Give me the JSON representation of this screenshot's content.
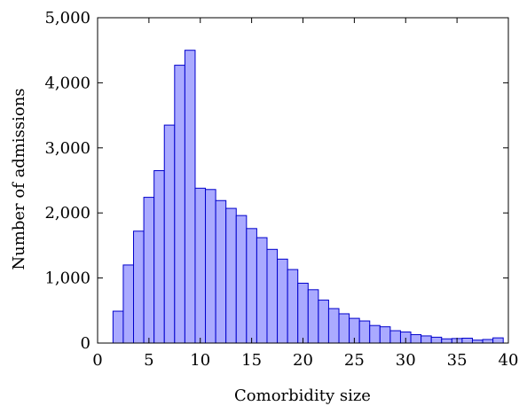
{
  "chart_data": {
    "type": "bar",
    "xlabel": "Comorbidity size",
    "ylabel": "Number of admissions",
    "xlim": [
      0,
      40
    ],
    "ylim": [
      0,
      5000
    ],
    "grid": false,
    "bar_color": "#aaaaff",
    "bar_edge_color": "#0000cc",
    "x_ticks": [
      {
        "value": 0,
        "label": "0"
      },
      {
        "value": 5,
        "label": "5"
      },
      {
        "value": 10,
        "label": "10"
      },
      {
        "value": 15,
        "label": "15"
      },
      {
        "value": 20,
        "label": "20"
      },
      {
        "value": 25,
        "label": "25"
      },
      {
        "value": 30,
        "label": "30"
      },
      {
        "value": 35,
        "label": "35"
      },
      {
        "value": 40,
        "label": "40"
      }
    ],
    "y_ticks": [
      {
        "value": 0,
        "label": "0"
      },
      {
        "value": 1000,
        "label": "1,000"
      },
      {
        "value": 2000,
        "label": "2,000"
      },
      {
        "value": 3000,
        "label": "3,000"
      },
      {
        "value": 4000,
        "label": "4,000"
      },
      {
        "value": 5000,
        "label": "5,000"
      }
    ],
    "bins": [
      {
        "x": 2,
        "value": 490
      },
      {
        "x": 3,
        "value": 1200
      },
      {
        "x": 4,
        "value": 1720
      },
      {
        "x": 5,
        "value": 2240
      },
      {
        "x": 6,
        "value": 2650
      },
      {
        "x": 7,
        "value": 3350
      },
      {
        "x": 8,
        "value": 4270
      },
      {
        "x": 9,
        "value": 4500
      },
      {
        "x": 10,
        "value": 2380
      },
      {
        "x": 11,
        "value": 2360
      },
      {
        "x": 12,
        "value": 2190
      },
      {
        "x": 13,
        "value": 2070
      },
      {
        "x": 14,
        "value": 1960
      },
      {
        "x": 15,
        "value": 1760
      },
      {
        "x": 16,
        "value": 1620
      },
      {
        "x": 17,
        "value": 1440
      },
      {
        "x": 18,
        "value": 1290
      },
      {
        "x": 19,
        "value": 1130
      },
      {
        "x": 20,
        "value": 920
      },
      {
        "x": 21,
        "value": 820
      },
      {
        "x": 22,
        "value": 660
      },
      {
        "x": 23,
        "value": 530
      },
      {
        "x": 24,
        "value": 450
      },
      {
        "x": 25,
        "value": 380
      },
      {
        "x": 26,
        "value": 340
      },
      {
        "x": 27,
        "value": 270
      },
      {
        "x": 28,
        "value": 250
      },
      {
        "x": 29,
        "value": 190
      },
      {
        "x": 30,
        "value": 170
      },
      {
        "x": 31,
        "value": 130
      },
      {
        "x": 32,
        "value": 110
      },
      {
        "x": 33,
        "value": 90
      },
      {
        "x": 34,
        "value": 65
      },
      {
        "x": 35,
        "value": 70
      },
      {
        "x": 36,
        "value": 75
      },
      {
        "x": 37,
        "value": 45
      },
      {
        "x": 38,
        "value": 55
      },
      {
        "x": 39,
        "value": 80
      }
    ]
  }
}
